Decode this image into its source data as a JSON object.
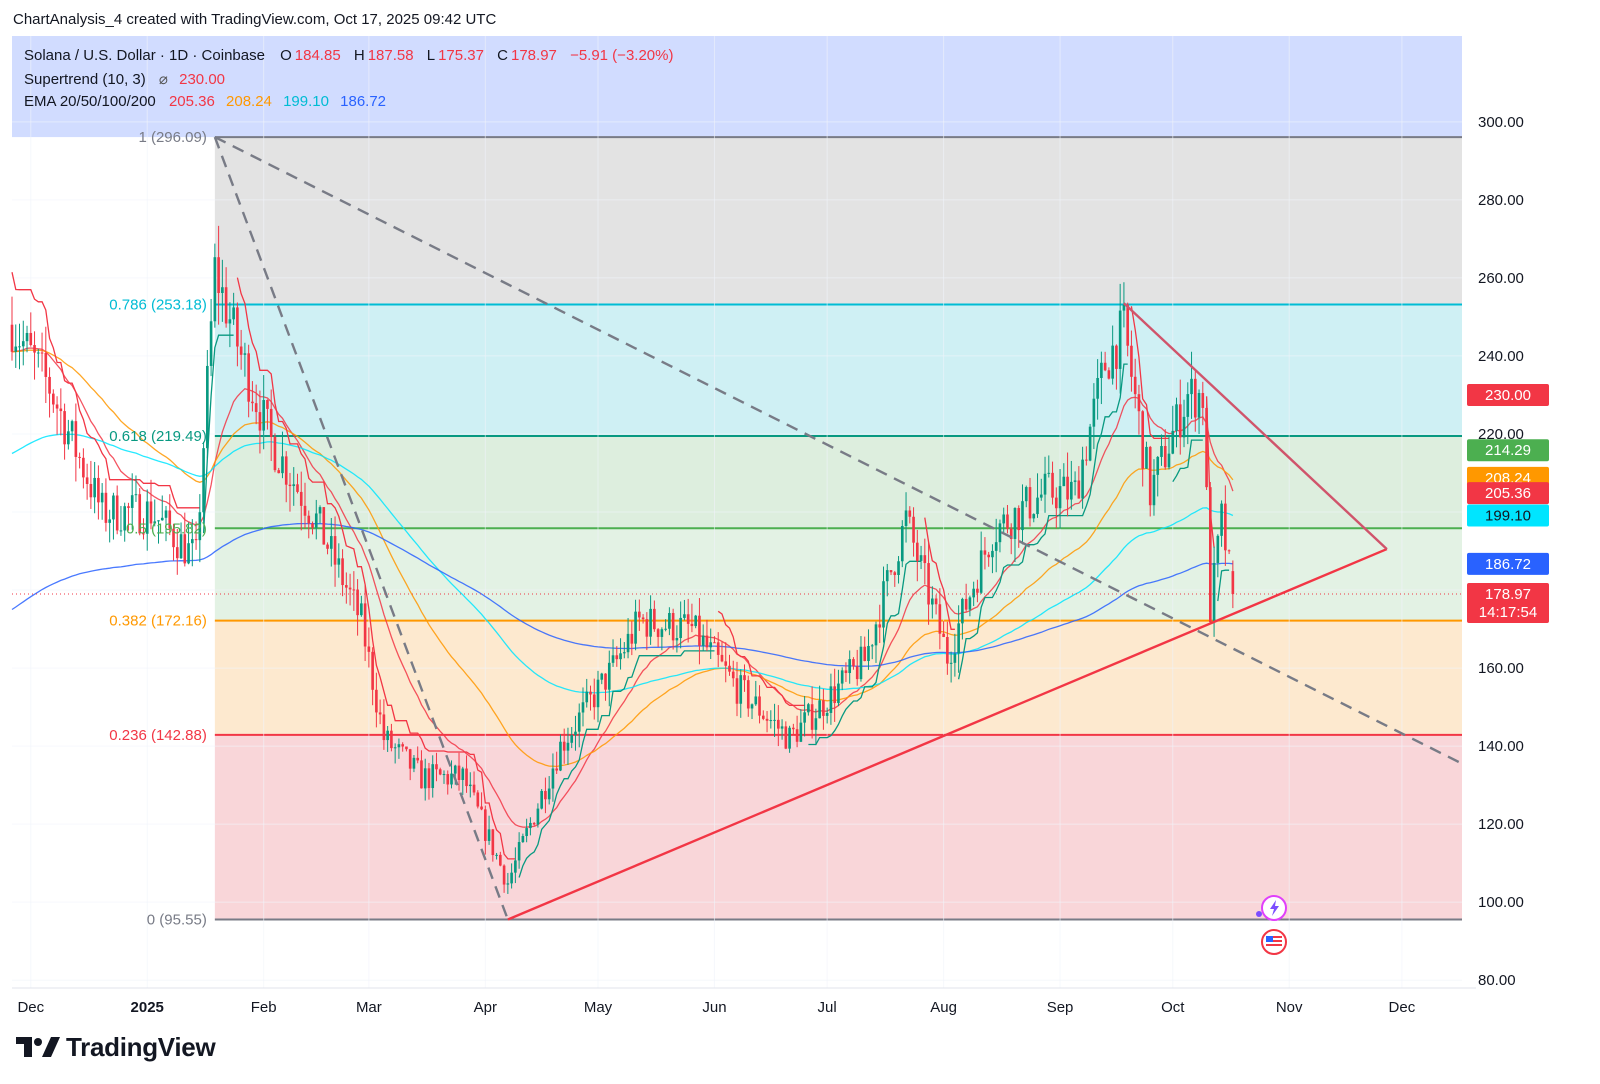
{
  "header": {
    "created_by": "ChartAnalysis_4 created with TradingView.com, Oct 17, 2025 09:42 UTC"
  },
  "legend": {
    "symbol": "Solana / U.S. Dollar · 1D · Coinbase",
    "open_label": "O",
    "open": "184.85",
    "high_label": "H",
    "high": "187.58",
    "low_label": "L",
    "low": "175.37",
    "close_label": "C",
    "close": "178.97",
    "change": "−5.91 (−3.20%)",
    "supertrend_label": "Supertrend (10, 3)",
    "supertrend_symbol": "⌀",
    "supertrend_value": "230.00",
    "ema_label": "EMA 20/50/100/200",
    "ema20": "205.36",
    "ema50": "208.24",
    "ema100": "199.10",
    "ema200": "186.72"
  },
  "brand": {
    "name": "TradingView"
  },
  "colors": {
    "up": "#089981",
    "down": "#f23645",
    "fib1": "#787b86",
    "fib786": "#00bcd4",
    "fib618": "#089981",
    "fib5": "#4caf50",
    "fib382": "#ff9800",
    "fib236": "#f23645",
    "ema20": "#f23645",
    "ema50": "#ff9800",
    "ema100": "#00e5ff",
    "ema200": "#2962ff"
  },
  "chart_data": {
    "type": "candlestick",
    "symbol": "Solana / U.S. Dollar",
    "interval": "1D",
    "exchange": "Coinbase",
    "y_ticks": [
      "80.00",
      "100.00",
      "120.00",
      "140.00",
      "160.00",
      "180.00",
      "200.00",
      "220.00",
      "240.00",
      "260.00",
      "280.00",
      "300.00"
    ],
    "ylim": [
      78,
      322
    ],
    "x_ticks": [
      "Dec",
      "2025",
      "Feb",
      "Mar",
      "Apr",
      "May",
      "Jun",
      "Jul",
      "Aug",
      "Sep",
      "Oct",
      "Nov",
      "Dec"
    ],
    "x_tick_dates": [
      "2024-12-01",
      "2025-01-01",
      "2025-02-01",
      "2025-03-01",
      "2025-04-01",
      "2025-05-01",
      "2025-06-01",
      "2025-07-01",
      "2025-08-01",
      "2025-09-01",
      "2025-10-01",
      "2025-11-01",
      "2025-12-01"
    ],
    "xlim": [
      "2024-11-26",
      "2025-12-17"
    ],
    "fib_levels": [
      {
        "label": "1 (296.09)",
        "value": 296.09
      },
      {
        "label": "0.786 (253.18)",
        "value": 253.18
      },
      {
        "label": "0.618 (219.49)",
        "value": 219.49
      },
      {
        "label": "0.5 (195.82)",
        "value": 195.82
      },
      {
        "label": "0.382 (172.16)",
        "value": 172.16
      },
      {
        "label": "0.236 (142.88)",
        "value": 142.88
      },
      {
        "label": "0 (95.55)",
        "value": 95.55
      }
    ],
    "fib_start": "2025-01-19",
    "price_badges": [
      {
        "value": 230.0,
        "label": "230.00",
        "name": "supertrend"
      },
      {
        "value": 214.29,
        "label": "214.29",
        "name": "level"
      },
      {
        "value": 208.24,
        "label": "208.24",
        "name": "ema50"
      },
      {
        "value": 205.36,
        "label": "205.36",
        "name": "ema20"
      },
      {
        "value": 199.1,
        "label": "199.10",
        "name": "ema100"
      },
      {
        "value": 186.72,
        "label": "186.72",
        "name": "ema200"
      },
      {
        "value": 178.97,
        "label": "178.97",
        "countdown": "14:17:54",
        "name": "last"
      }
    ],
    "trendlines": [
      {
        "name": "dashed-downtrend",
        "points": [
          [
            "2025-01-19",
            296.09
          ],
          [
            "2025-12-17",
            135.5
          ]
        ],
        "style": "dashed"
      },
      {
        "name": "dashed-jan-apr",
        "points": [
          [
            "2025-01-19",
            296.09
          ],
          [
            "2025-04-07",
            95.55
          ]
        ],
        "style": "dashed"
      },
      {
        "name": "support-uptrend",
        "points": [
          [
            "2025-04-07",
            95.55
          ],
          [
            "2025-11-27",
            190.5
          ]
        ],
        "style": "solid"
      },
      {
        "name": "resistance-downtrend",
        "points": [
          [
            "2025-09-18",
            253.5
          ],
          [
            "2025-11-27",
            190.5
          ]
        ],
        "style": "solid"
      }
    ],
    "trend_anchors": [
      [
        "2024-11-26",
        248
      ],
      [
        "2024-12-06",
        232
      ],
      [
        "2024-12-20",
        200
      ],
      [
        "2025-01-02",
        200
      ],
      [
        "2025-01-14",
        188
      ],
      [
        "2025-01-19",
        262
      ],
      [
        "2025-01-26",
        240
      ],
      [
        "2025-02-03",
        218
      ],
      [
        "2025-02-15",
        198
      ],
      [
        "2025-02-27",
        172
      ],
      [
        "2025-03-05",
        142
      ],
      [
        "2025-03-15",
        132
      ],
      [
        "2025-03-26",
        132
      ],
      [
        "2025-04-07",
        105
      ],
      [
        "2025-04-21",
        140
      ],
      [
        "2025-05-05",
        160
      ],
      [
        "2025-05-12",
        172
      ],
      [
        "2025-05-26",
        170
      ],
      [
        "2025-06-07",
        155
      ],
      [
        "2025-06-21",
        142
      ],
      [
        "2025-07-01",
        152
      ],
      [
        "2025-07-11",
        162
      ],
      [
        "2025-07-22",
        198
      ],
      [
        "2025-08-02",
        163
      ],
      [
        "2025-08-14",
        195
      ],
      [
        "2025-08-28",
        205
      ],
      [
        "2025-09-05",
        205
      ],
      [
        "2025-09-13",
        238
      ],
      [
        "2025-09-18",
        247
      ],
      [
        "2025-09-25",
        205
      ],
      [
        "2025-10-05",
        230
      ],
      [
        "2025-10-09",
        230
      ],
      [
        "2025-10-11",
        175
      ],
      [
        "2025-10-14",
        198
      ],
      [
        "2025-10-17",
        178.97
      ]
    ],
    "ema_values": {
      "ema20": 205.36,
      "ema50": 208.24,
      "ema100": 199.1,
      "ema200": 186.72
    },
    "supertrend_value": 230.0,
    "last_close": 178.97
  }
}
